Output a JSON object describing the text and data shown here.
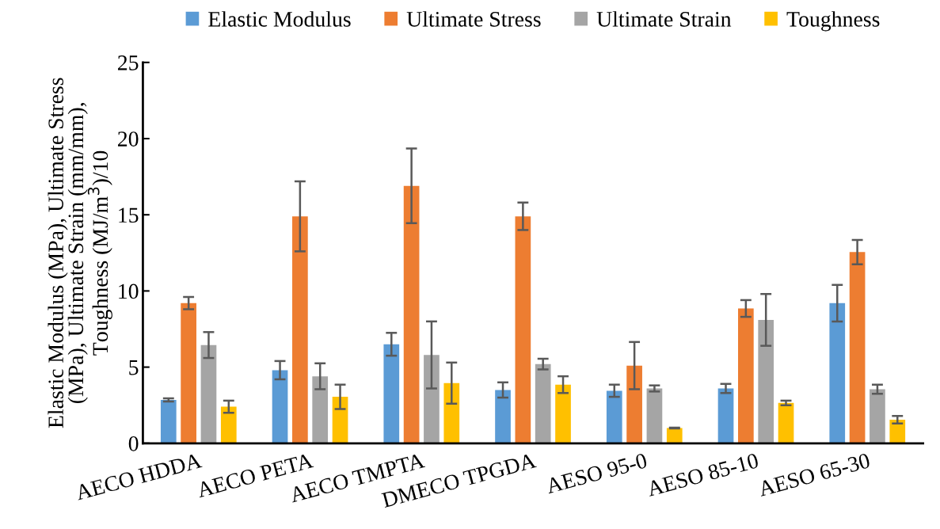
{
  "chart_data": {
    "type": "bar",
    "ylabel": "Elastic Modulus (MPa), Ultimate Stress\n(MPa), Ultimate Strain (mm/mm),\nToughness (MJ/m$^{3}$)/10",
    "categories": [
      "AECO HDDA",
      "AECO PETA",
      "AECO TMPTA",
      "DMECO TPGDA",
      "AESO 95-0",
      "AESO 85-10",
      "AESO 65-30"
    ],
    "series": [
      {
        "name": "Elastic Modulus",
        "color": "#5b9bd5",
        "values": [
          2.85,
          4.8,
          6.5,
          3.5,
          3.45,
          3.6,
          9.2
        ],
        "errors": [
          0.1,
          0.6,
          0.75,
          0.5,
          0.4,
          0.3,
          1.2
        ]
      },
      {
        "name": "Ultimate Stress",
        "color": "#ed7d31",
        "values": [
          9.2,
          14.9,
          16.9,
          14.9,
          5.1,
          8.85,
          12.55
        ],
        "errors": [
          0.4,
          2.3,
          2.45,
          0.9,
          1.55,
          0.55,
          0.8
        ]
      },
      {
        "name": "Ultimate Strain",
        "color": "#a5a5a5",
        "values": [
          6.45,
          4.4,
          5.8,
          5.2,
          3.6,
          8.1,
          3.55
        ],
        "errors": [
          0.85,
          0.85,
          2.2,
          0.35,
          0.2,
          1.7,
          0.3
        ]
      },
      {
        "name": "Toughness",
        "color": "#ffc000",
        "values": [
          2.4,
          3.05,
          3.95,
          3.85,
          1.0,
          2.65,
          1.55
        ],
        "errors": [
          0.4,
          0.8,
          1.35,
          0.55,
          0.03,
          0.15,
          0.25
        ]
      }
    ],
    "ylim": [
      0,
      25
    ],
    "yticks": [
      0,
      5,
      10,
      15,
      20,
      25
    ],
    "grid": false,
    "legend": "top"
  }
}
